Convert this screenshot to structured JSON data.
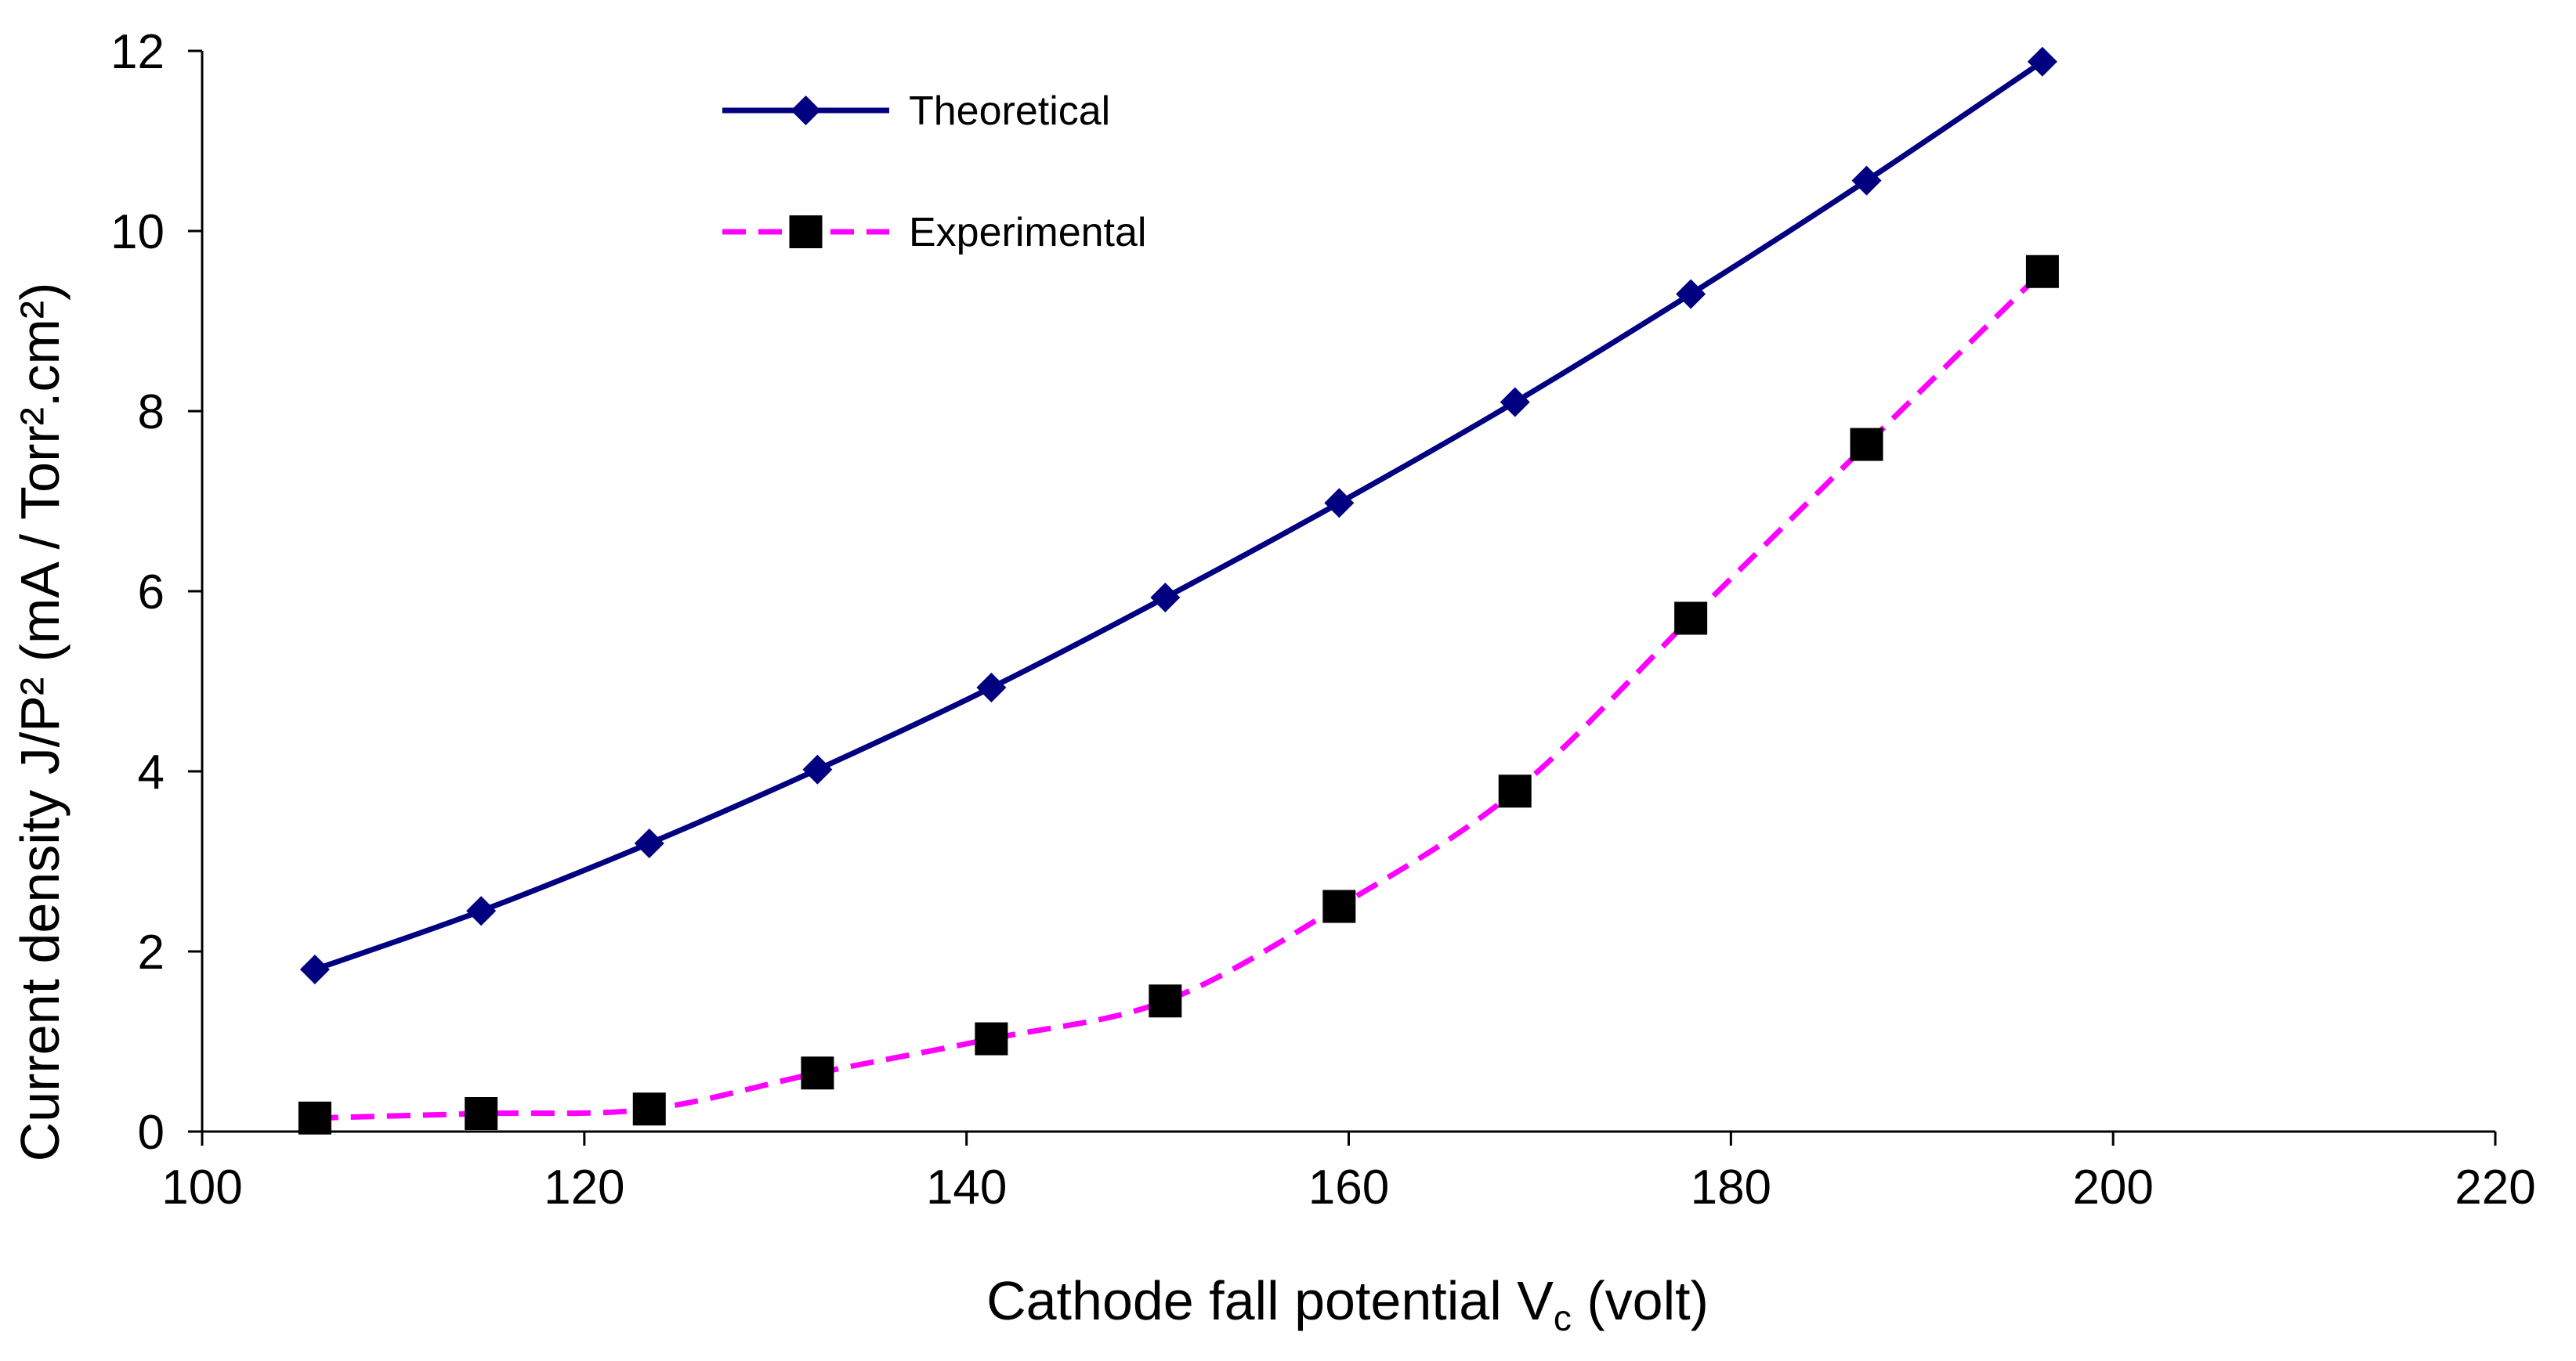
{
  "chart_data": {
    "type": "line",
    "title": "",
    "xlabel": {
      "main": "Cathode fall potential V",
      "sub": "c",
      "tail": " (volt)"
    },
    "ylabel": "Current density  J/P² (mA / Torr².cm²)",
    "xlim": [
      100,
      220
    ],
    "ylim": [
      0,
      12
    ],
    "x_ticks": [
      100,
      120,
      140,
      160,
      180,
      200,
      220
    ],
    "y_ticks": [
      0,
      2,
      4,
      6,
      8,
      10,
      12
    ],
    "grid": false,
    "legend_position": "top-left-center",
    "series": [
      {
        "name": "Theoretical",
        "color": "#000080",
        "line_style": "solid",
        "marker": "diamond",
        "x": [
          105.9,
          114.6,
          123.4,
          132.2,
          141.3,
          150.4,
          159.5,
          168.7,
          177.9,
          187.1,
          196.3
        ],
        "y": [
          1.8,
          2.45,
          3.2,
          4.02,
          4.93,
          5.93,
          6.98,
          8.1,
          9.3,
          10.56,
          11.88
        ]
      },
      {
        "name": "Experimental",
        "color": "#FF00FF",
        "marker_color": "#000000",
        "line_style": "dashed",
        "marker": "square",
        "x": [
          105.9,
          114.6,
          123.4,
          132.2,
          141.3,
          150.4,
          159.5,
          168.7,
          177.9,
          187.1,
          196.3
        ],
        "y": [
          0.15,
          0.2,
          0.25,
          0.65,
          1.03,
          1.45,
          2.5,
          3.78,
          5.7,
          7.63,
          9.55
        ]
      }
    ]
  }
}
